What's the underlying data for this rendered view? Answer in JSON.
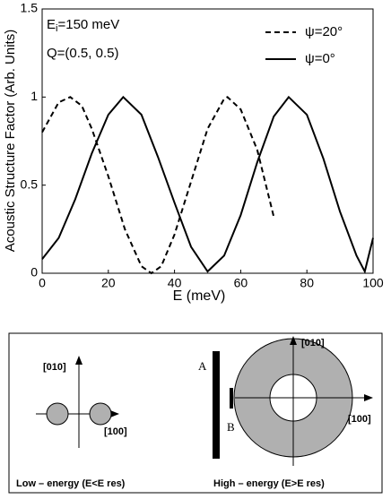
{
  "chart_data": {
    "type": "line",
    "xlabel": "E (meV)",
    "ylabel": "Acoustic Structure Factor (Arb. Units)",
    "annotations": {
      "e_base": "E",
      "e_sub": "i",
      "e_rest": "=150 meV",
      "q": "Q=(0.5, 0.5)"
    },
    "xlim": [
      0,
      100
    ],
    "xticks": [
      0,
      20,
      40,
      60,
      80,
      100
    ],
    "ylim": [
      0,
      1.5
    ],
    "yticks": [
      0,
      0.5,
      1,
      1.5
    ],
    "legend": "upper right",
    "series": [
      {
        "name": "ψ=20°",
        "color": "#000000",
        "style": "dashed",
        "x": [
          0,
          5,
          8.5,
          12,
          15,
          20,
          25,
          30,
          33,
          36,
          40,
          45,
          50,
          55,
          56,
          60,
          65,
          70
        ],
        "values": [
          0.8,
          0.97,
          1.0,
          0.95,
          0.82,
          0.55,
          0.25,
          0.04,
          0.0,
          0.04,
          0.22,
          0.52,
          0.82,
          0.99,
          1.0,
          0.93,
          0.7,
          0.32
        ]
      },
      {
        "name": "ψ=0°",
        "color": "#000000",
        "style": "solid",
        "x": [
          0,
          5,
          10,
          15,
          20,
          24.5,
          30,
          35,
          40,
          45,
          50,
          55,
          60,
          65,
          70,
          74.5,
          80,
          85,
          90,
          95,
          97.5,
          100
        ],
        "values": [
          0.08,
          0.2,
          0.42,
          0.68,
          0.9,
          1.0,
          0.9,
          0.66,
          0.4,
          0.15,
          0.01,
          0.1,
          0.33,
          0.63,
          0.89,
          1.0,
          0.9,
          0.65,
          0.35,
          0.1,
          0.01,
          0.2
        ]
      }
    ]
  },
  "diagram": {
    "left": {
      "axis_y": "[010]",
      "axis_x": "[100]",
      "caption": "Low – energy (E<E res)"
    },
    "right": {
      "axis_y": "[010]",
      "axis_x": "[100]",
      "label_a": "A",
      "label_b": "B",
      "caption": "High – energy (E>E res)"
    }
  }
}
